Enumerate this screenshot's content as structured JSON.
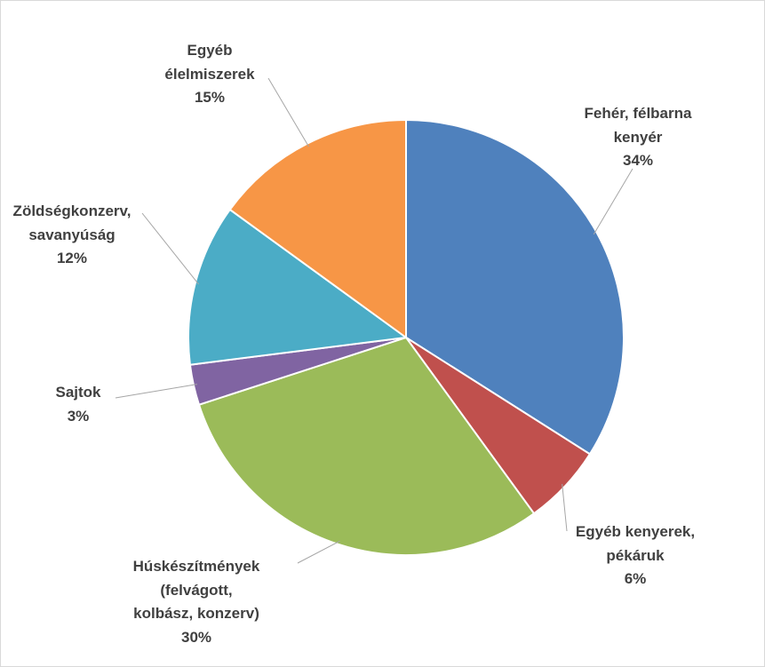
{
  "chart_data": {
    "type": "pie",
    "categories": [
      "Fehér, félbarna\nkenyér",
      "Egyéb kenyerek,\npékáruk",
      "Húskészítmények\n(felvágott,\nkolbász, konzerv)",
      "Sajtok",
      "Zöldségkonzerv,\nsavanyúság",
      "Egyéb\nélelmiszerek"
    ],
    "values": [
      34,
      6,
      30,
      3,
      12,
      15
    ],
    "value_labels": [
      "34%",
      "6%",
      "30%",
      "3%",
      "12%",
      "15%"
    ],
    "colors": [
      "#4f81bd",
      "#c0504d",
      "#9bbb59",
      "#8064a2",
      "#4bacc6",
      "#f79646"
    ]
  }
}
